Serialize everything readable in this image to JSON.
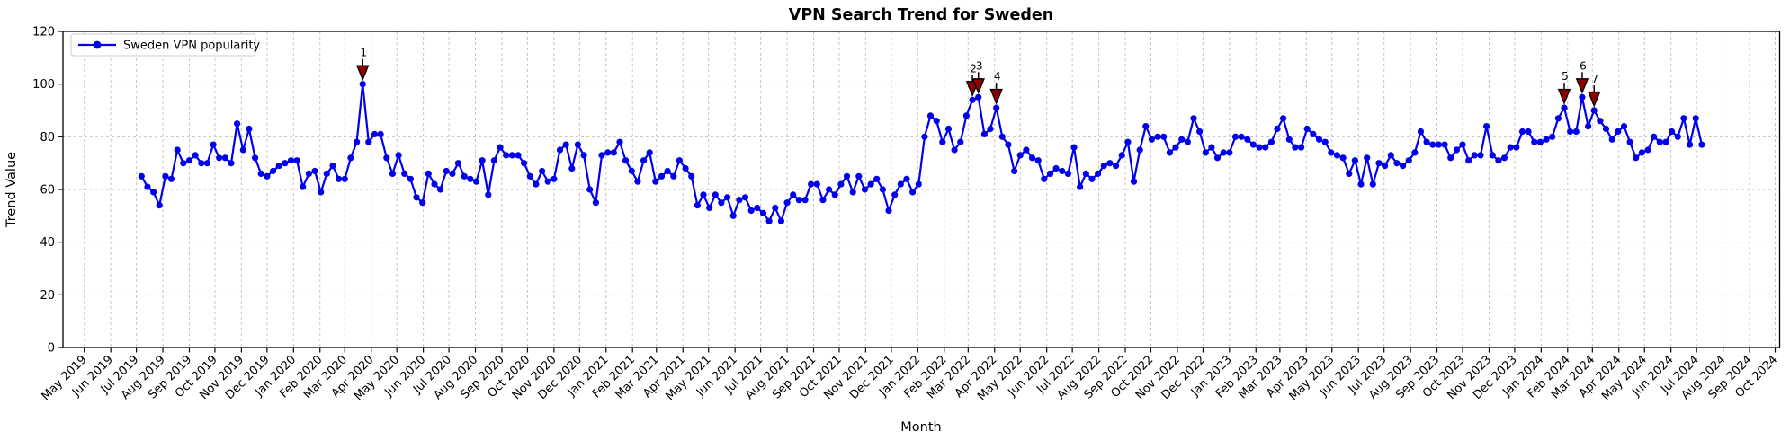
{
  "figure": {
    "title": "VPN Search Trend for Sweden",
    "xlabel": "Month",
    "ylabel": "Trend Value",
    "legend": {
      "label": "Sweden VPN popularity",
      "position": "upper left"
    }
  },
  "colors": {
    "line": "#0000ee",
    "marker": "#0000ee",
    "annotation_fill": "#8b0000",
    "annotation_edge": "#000000",
    "annotation_text": "#8b0000",
    "grid": "#c4c4c4",
    "axis": "#000000",
    "background": "#ffffff",
    "legend_border": "#cccccc"
  },
  "chart_data": {
    "type": "line",
    "title": "VPN Search Trend for Sweden",
    "xlabel": "Month",
    "ylabel": "Trend Value",
    "grid": true,
    "legend_position": "upper left",
    "ylim": [
      0,
      120
    ],
    "y_ticks": [
      0,
      20,
      40,
      60,
      80,
      100,
      120
    ],
    "x_range": [
      "2019-05-01",
      "2024-10-01"
    ],
    "x_tick_labels": [
      "May 2019",
      "Jun 2019",
      "Jul 2019",
      "Aug 2019",
      "Sep 2019",
      "Oct 2019",
      "Nov 2019",
      "Dec 2019",
      "Jan 2020",
      "Feb 2020",
      "Mar 2020",
      "Apr 2020",
      "May 2020",
      "Jun 2020",
      "Jul 2020",
      "Aug 2020",
      "Sep 2020",
      "Oct 2020",
      "Nov 2020",
      "Dec 2020",
      "Jan 2021",
      "Feb 2021",
      "Mar 2021",
      "Apr 2021",
      "May 2021",
      "Jun 2021",
      "Jul 2021",
      "Aug 2021",
      "Sep 2021",
      "Oct 2021",
      "Nov 2021",
      "Dec 2021",
      "Jan 2022",
      "Feb 2022",
      "Mar 2022",
      "Apr 2022",
      "May 2022",
      "Jun 2022",
      "Jul 2022",
      "Aug 2022",
      "Sep 2022",
      "Oct 2022",
      "Nov 2022",
      "Dec 2022",
      "Jan 2023",
      "Feb 2023",
      "Mar 2023",
      "Apr 2023",
      "May 2023",
      "Jun 2023",
      "Jul 2023",
      "Aug 2023",
      "Sep 2023",
      "Oct 2023",
      "Nov 2023",
      "Dec 2023",
      "Jan 2024",
      "Feb 2024",
      "Mar 2024",
      "Apr 2024",
      "May 2024",
      "Jun 2024",
      "Jul 2024",
      "Aug 2024",
      "Sep 2024",
      "Oct 2024"
    ],
    "series": [
      {
        "name": "Sweden VPN popularity",
        "start_date": "2019-07-07",
        "interval_days": 7,
        "values": [
          65,
          61,
          59,
          54,
          65,
          64,
          75,
          70,
          71,
          73,
          70,
          70,
          77,
          72,
          72,
          70,
          85,
          75,
          83,
          72,
          66,
          65,
          67,
          69,
          70,
          71,
          71,
          61,
          66,
          67,
          59,
          66,
          69,
          64,
          64,
          72,
          78,
          100,
          78,
          81,
          81,
          72,
          66,
          73,
          66,
          64,
          57,
          55,
          66,
          62,
          60,
          67,
          66,
          70,
          65,
          64,
          63,
          71,
          58,
          71,
          76,
          73,
          73,
          73,
          70,
          65,
          62,
          67,
          63,
          64,
          75,
          77,
          68,
          77,
          73,
          60,
          55,
          73,
          74,
          74,
          78,
          71,
          67,
          63,
          71,
          74,
          63,
          65,
          67,
          65,
          71,
          68,
          65,
          54,
          58,
          53,
          58,
          55,
          57,
          50,
          56,
          57,
          52,
          53,
          51,
          48,
          53,
          48,
          55,
          58,
          56,
          56,
          62,
          62,
          56,
          60,
          58,
          62,
          65,
          59,
          65,
          60,
          62,
          64,
          60,
          52,
          58,
          62,
          64,
          59,
          62,
          80,
          88,
          86,
          78,
          83,
          75,
          78,
          88,
          94,
          95,
          81,
          83,
          91,
          80,
          77,
          67,
          73,
          75,
          72,
          71,
          64,
          66,
          68,
          67,
          66,
          76,
          61,
          66,
          64,
          66,
          69,
          70,
          69,
          73,
          78,
          63,
          75,
          84,
          79,
          80,
          80,
          74,
          76,
          79,
          78,
          87,
          82,
          74,
          76,
          72,
          74,
          74,
          80,
          80,
          79,
          77,
          76,
          76,
          78,
          83,
          87,
          79,
          76,
          76,
          83,
          81,
          79,
          78,
          74,
          73,
          72,
          66,
          71,
          62,
          72,
          62,
          70,
          69,
          73,
          70,
          69,
          71,
          74,
          82,
          78,
          77,
          77,
          77,
          72,
          75,
          77,
          71,
          73,
          73,
          84,
          73,
          71,
          72,
          76,
          76,
          82,
          82,
          78,
          78,
          79,
          80,
          87,
          91,
          82,
          82,
          95,
          84,
          90,
          86,
          83,
          79,
          82,
          84,
          78,
          72,
          74,
          75,
          80,
          78,
          78,
          82,
          80,
          87,
          77,
          87,
          77
        ]
      }
    ],
    "annotations": [
      {
        "label": "1",
        "date": "2020-03-22",
        "value": 100
      },
      {
        "label": "2",
        "date": "2022-03-06",
        "value": 94
      },
      {
        "label": "3",
        "date": "2022-03-13",
        "value": 95
      },
      {
        "label": "4",
        "date": "2022-04-03",
        "value": 91
      },
      {
        "label": "5",
        "date": "2024-01-28",
        "value": 91
      },
      {
        "label": "6",
        "date": "2024-02-18",
        "value": 95
      },
      {
        "label": "7",
        "date": "2024-03-03",
        "value": 90
      }
    ]
  }
}
